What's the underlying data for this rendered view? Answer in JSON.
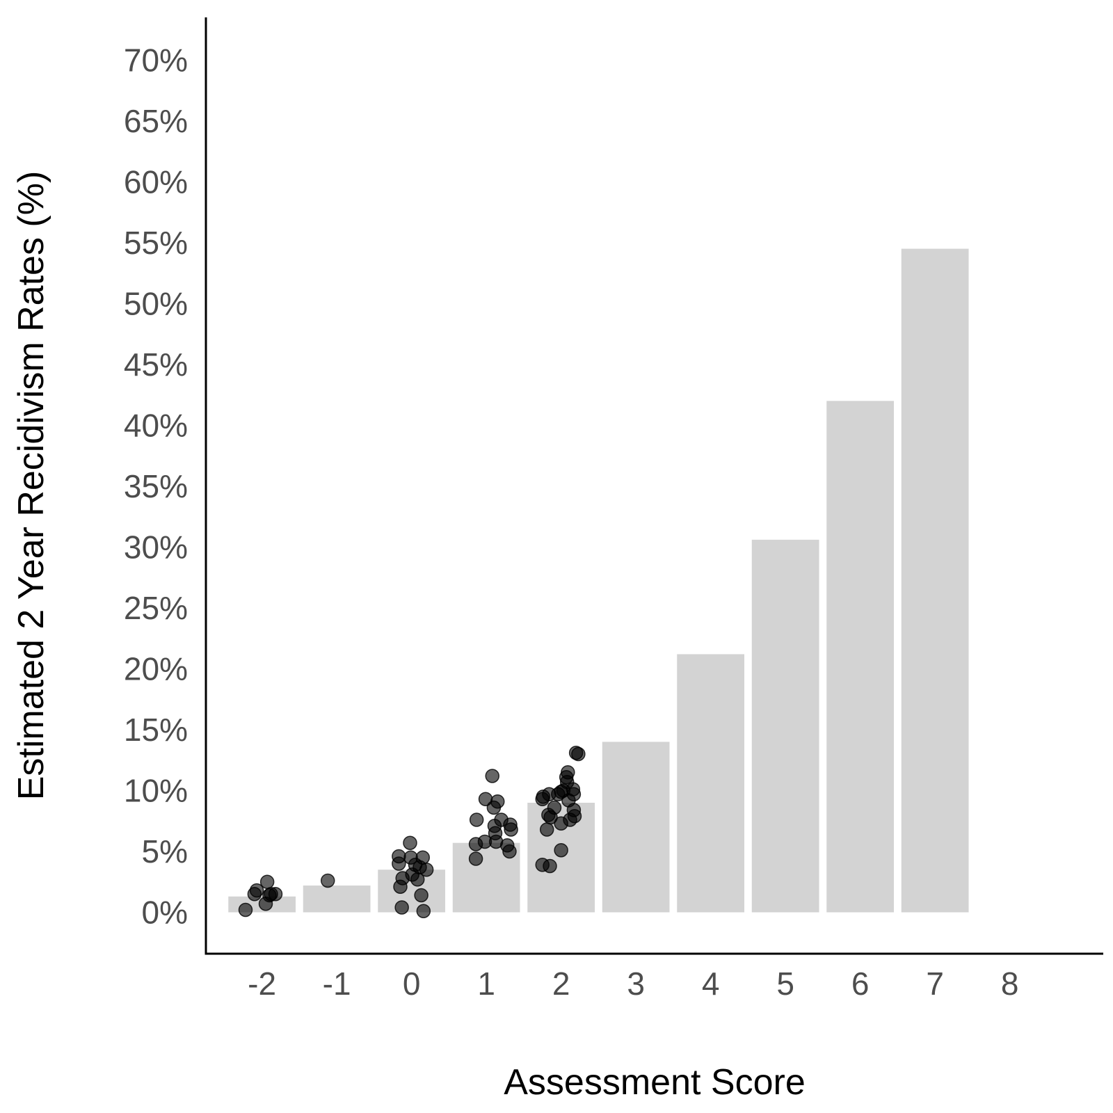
{
  "chart_data": {
    "type": "bar",
    "xlabel": "Assessment Score",
    "ylabel": "Estimated 2 Year Recidivism Rates (%)",
    "x_ticks": [
      "-2",
      "-1",
      "0",
      "1",
      "2",
      "3",
      "4",
      "5",
      "6",
      "7",
      "8"
    ],
    "y_ticks": [
      "0%",
      "5%",
      "10%",
      "15%",
      "20%",
      "25%",
      "30%",
      "35%",
      "40%",
      "45%",
      "50%",
      "55%",
      "60%",
      "65%",
      "70%"
    ],
    "ylim": [
      -3.4,
      73.5
    ],
    "xlim": [
      -2.75,
      9.25
    ],
    "grid": false,
    "colors": {
      "bar": "#d3d3d3",
      "point": "#000000",
      "axis": "#000000"
    },
    "bars": [
      {
        "x": -2,
        "value": 1.3
      },
      {
        "x": -1,
        "value": 2.2
      },
      {
        "x": 0,
        "value": 3.5
      },
      {
        "x": 1,
        "value": 5.7
      },
      {
        "x": 2,
        "value": 9.0
      },
      {
        "x": 3,
        "value": 14.0
      },
      {
        "x": 4,
        "value": 21.2
      },
      {
        "x": 5,
        "value": 30.6
      },
      {
        "x": 6,
        "value": 42.0
      },
      {
        "x": 7,
        "value": 54.5
      }
    ],
    "points": [
      {
        "x": -2.22,
        "y": 0.2
      },
      {
        "x": -2.1,
        "y": 1.5
      },
      {
        "x": -2.07,
        "y": 1.8
      },
      {
        "x": -1.95,
        "y": 0.7
      },
      {
        "x": -1.93,
        "y": 2.5
      },
      {
        "x": -1.9,
        "y": 1.4
      },
      {
        "x": -1.88,
        "y": 1.5
      },
      {
        "x": -1.82,
        "y": 1.5
      },
      {
        "x": -1.12,
        "y": 2.6
      },
      {
        "x": -0.17,
        "y": 4.0
      },
      {
        "x": -0.17,
        "y": 4.6
      },
      {
        "x": -0.15,
        "y": 2.1
      },
      {
        "x": -0.13,
        "y": 0.4
      },
      {
        "x": -0.12,
        "y": 2.8
      },
      {
        "x": -0.02,
        "y": 5.7
      },
      {
        "x": -0.01,
        "y": 4.5
      },
      {
        "x": 0.01,
        "y": 3.1
      },
      {
        "x": 0.05,
        "y": 3.9
      },
      {
        "x": 0.08,
        "y": 2.7
      },
      {
        "x": 0.11,
        "y": 3.7
      },
      {
        "x": 0.13,
        "y": 1.4
      },
      {
        "x": 0.15,
        "y": 4.5
      },
      {
        "x": 0.16,
        "y": 0.1
      },
      {
        "x": 0.2,
        "y": 3.5
      },
      {
        "x": 0.86,
        "y": 4.4
      },
      {
        "x": 0.86,
        "y": 5.6
      },
      {
        "x": 0.87,
        "y": 7.6
      },
      {
        "x": 0.98,
        "y": 5.8
      },
      {
        "x": 0.99,
        "y": 9.3
      },
      {
        "x": 1.08,
        "y": 11.2
      },
      {
        "x": 1.1,
        "y": 8.6
      },
      {
        "x": 1.11,
        "y": 7.1
      },
      {
        "x": 1.12,
        "y": 6.5
      },
      {
        "x": 1.13,
        "y": 5.8
      },
      {
        "x": 1.15,
        "y": 9.1
      },
      {
        "x": 1.2,
        "y": 7.6
      },
      {
        "x": 1.28,
        "y": 5.5
      },
      {
        "x": 1.31,
        "y": 5.0
      },
      {
        "x": 1.32,
        "y": 7.2
      },
      {
        "x": 1.33,
        "y": 6.8
      },
      {
        "x": 1.75,
        "y": 3.9
      },
      {
        "x": 1.75,
        "y": 9.3
      },
      {
        "x": 1.76,
        "y": 9.5
      },
      {
        "x": 1.81,
        "y": 6.8
      },
      {
        "x": 1.83,
        "y": 8.0
      },
      {
        "x": 1.84,
        "y": 9.7
      },
      {
        "x": 1.85,
        "y": 3.8
      },
      {
        "x": 1.86,
        "y": 7.8
      },
      {
        "x": 1.91,
        "y": 8.6
      },
      {
        "x": 1.96,
        "y": 9.7
      },
      {
        "x": 2.0,
        "y": 9.9
      },
      {
        "x": 2.0,
        "y": 5.1
      },
      {
        "x": 2.0,
        "y": 7.3
      },
      {
        "x": 2.03,
        "y": 10.0
      },
      {
        "x": 2.07,
        "y": 11.1
      },
      {
        "x": 2.08,
        "y": 10.7
      },
      {
        "x": 2.09,
        "y": 11.5
      },
      {
        "x": 2.1,
        "y": 9.2
      },
      {
        "x": 2.12,
        "y": 7.6
      },
      {
        "x": 2.16,
        "y": 10.1
      },
      {
        "x": 2.17,
        "y": 9.7
      },
      {
        "x": 2.17,
        "y": 8.4
      },
      {
        "x": 2.18,
        "y": 7.9
      },
      {
        "x": 2.2,
        "y": 13.1
      },
      {
        "x": 2.23,
        "y": 13.0
      }
    ]
  }
}
